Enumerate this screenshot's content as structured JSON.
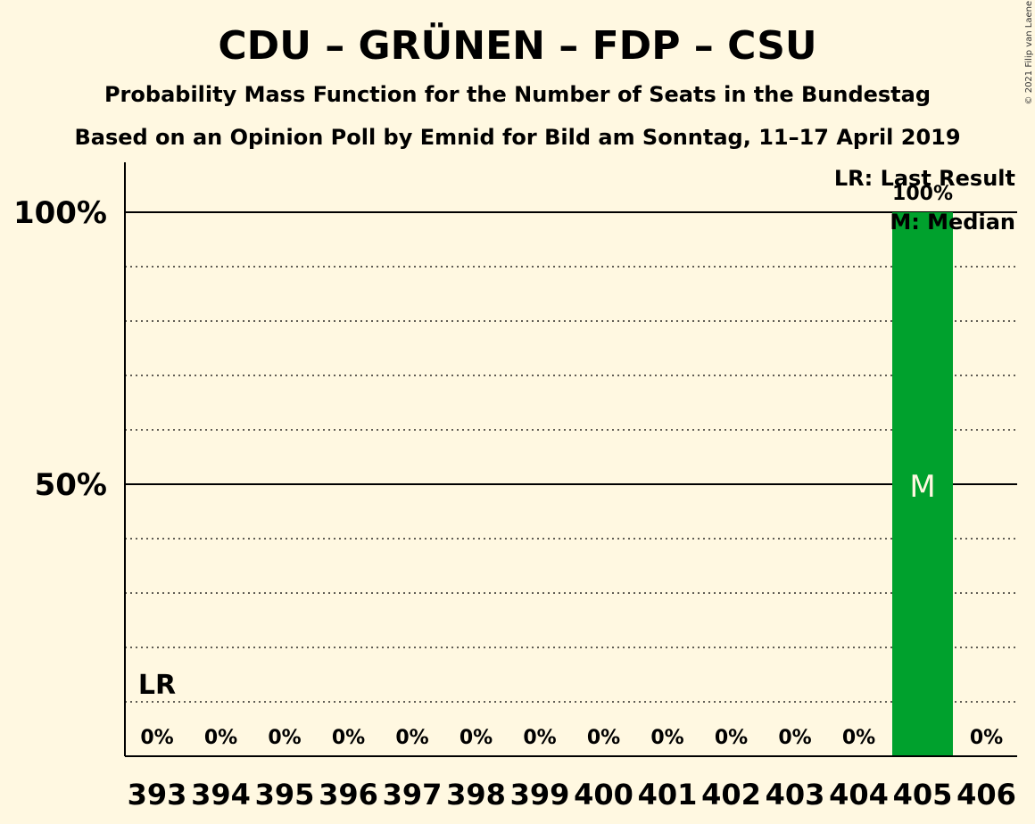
{
  "chart_data": {
    "type": "bar",
    "title": "CDU – GRÜNEN – FDP – CSU",
    "subtitle_1": "Probability Mass Function for the Number of Seats in the Bundestag",
    "subtitle_2": "Based on an Opinion Poll by Emnid for Bild am Sonntag, 11–17 April 2019",
    "categories": [
      "393",
      "394",
      "395",
      "396",
      "397",
      "398",
      "399",
      "400",
      "401",
      "402",
      "403",
      "404",
      "405",
      "406"
    ],
    "values": [
      0,
      0,
      0,
      0,
      0,
      0,
      0,
      0,
      0,
      0,
      0,
      0,
      100,
      0
    ],
    "value_labels": [
      "0%",
      "0%",
      "0%",
      "0%",
      "0%",
      "0%",
      "0%",
      "0%",
      "0%",
      "0%",
      "0%",
      "0%",
      "100%",
      "0%"
    ],
    "ylim": [
      0,
      100
    ],
    "y_ticks": [
      {
        "value": 50,
        "label": "50%"
      },
      {
        "value": 100,
        "label": "100%"
      }
    ],
    "minor_grid_step": 10,
    "last_result_category": "393",
    "last_result_marker": "LR",
    "median_category": "405",
    "median_marker": "M",
    "legend": {
      "position": "top-right",
      "lines": [
        "LR: Last Result",
        "M: Median"
      ]
    },
    "bar_color": "#00a12d",
    "background_color": "#fff8e1",
    "copyright": "© 2021 Filip van Laenen"
  }
}
